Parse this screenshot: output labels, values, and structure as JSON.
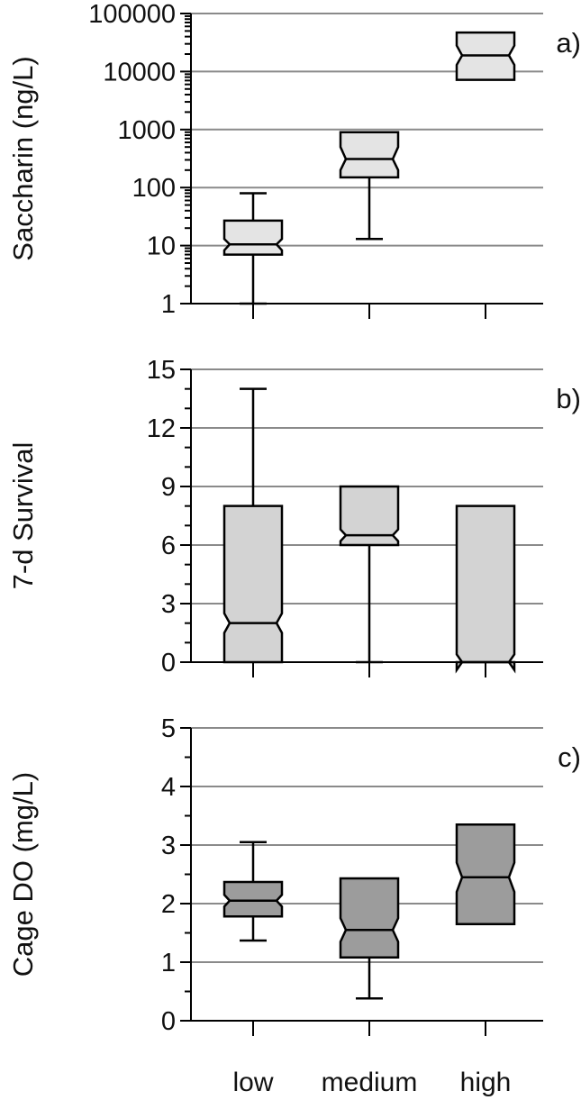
{
  "categories": [
    "low",
    "medium",
    "high"
  ],
  "chart_data": [
    {
      "type": "box",
      "panel_label": "a)",
      "ylabel": "Saccharin (ng/L)",
      "yscale": "log",
      "ylim": [
        1,
        100000
      ],
      "yticks": [
        1,
        10,
        100,
        1000,
        10000,
        100000
      ],
      "ytick_labels": [
        "1",
        "10",
        "100",
        "1000",
        "10000",
        "100000"
      ],
      "grid": true,
      "fill": "#e4e4e4",
      "boxes": [
        {
          "category": "low",
          "min": 1,
          "q1": 7,
          "median": 10.5,
          "q3": 27,
          "max": 80,
          "notch_low": 8.3,
          "notch_high": 13
        },
        {
          "category": "medium",
          "min": 13,
          "q1": 150,
          "median": 310,
          "q3": 900,
          "max": 900,
          "notch_low": 200,
          "notch_high": 500
        },
        {
          "category": "high",
          "min": 7200,
          "q1": 7200,
          "median": 19000,
          "q3": 47000,
          "max": 47000,
          "notch_low": 13000,
          "notch_high": 28000
        }
      ]
    },
    {
      "type": "box",
      "panel_label": "b)",
      "ylabel": "7-d Survival",
      "yscale": "linear",
      "ylim": [
        0,
        15
      ],
      "yticks": [
        0,
        3,
        6,
        9,
        12,
        15
      ],
      "ytick_labels": [
        "0",
        "3",
        "6",
        "9",
        "12",
        "15"
      ],
      "minor_step": 1,
      "grid": true,
      "fill": "#d3d3d3",
      "boxes": [
        {
          "category": "low",
          "min": 0,
          "q1": 0,
          "median": 2,
          "q3": 8,
          "max": 14,
          "notch_low": 1.5,
          "notch_high": 2.5
        },
        {
          "category": "medium",
          "min": 0,
          "q1": 6,
          "median": 6.5,
          "q3": 9,
          "max": 9,
          "notch_low": 6.2,
          "notch_high": 6.8
        },
        {
          "category": "high",
          "min": 0,
          "q1": 0,
          "median": 0,
          "q3": 8,
          "max": 8,
          "notch_low": -0.4,
          "notch_high": 0.4
        }
      ]
    },
    {
      "type": "box",
      "panel_label": "c)",
      "ylabel": "Cage DO (mg/L)",
      "yscale": "linear",
      "ylim": [
        0,
        5
      ],
      "yticks": [
        0,
        1,
        2,
        3,
        4,
        5
      ],
      "ytick_labels": [
        "0",
        "1",
        "2",
        "3",
        "4",
        "5"
      ],
      "minor_step": 0.5,
      "grid": true,
      "fill": "#9c9c9c",
      "boxes": [
        {
          "category": "low",
          "min": 1.37,
          "q1": 1.78,
          "median": 2.05,
          "q3": 2.37,
          "max": 3.05,
          "notch_low": 1.95,
          "notch_high": 2.15
        },
        {
          "category": "medium",
          "min": 0.38,
          "q1": 1.08,
          "median": 1.55,
          "q3": 2.43,
          "max": 2.43,
          "notch_low": 1.35,
          "notch_high": 1.75
        },
        {
          "category": "high",
          "min": 1.65,
          "q1": 1.65,
          "median": 2.45,
          "q3": 3.35,
          "max": 3.35,
          "notch_low": 2.2,
          "notch_high": 2.7
        }
      ]
    }
  ]
}
